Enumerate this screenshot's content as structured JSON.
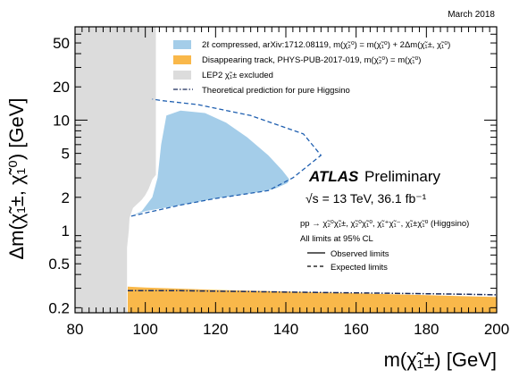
{
  "chart_data": {
    "type": "area",
    "date_label": "March 2018",
    "xlabel": "m(χ̃₁±) [GeV]",
    "ylabel": "Δm(χ̃₁±, χ̃₁⁰) [GeV]",
    "xlim": [
      80,
      200
    ],
    "ylim": [
      0.18,
      70
    ],
    "yscale": "log",
    "x_ticks": [
      "80",
      "100",
      "120",
      "140",
      "160",
      "180",
      "200"
    ],
    "y_ticks": [
      "0.2",
      "0.5",
      "1",
      "2",
      "5",
      "10",
      "20",
      "50"
    ],
    "y_tick_values": [
      0.2,
      0.5,
      1,
      2,
      5,
      10,
      20,
      50
    ],
    "legend": [
      {
        "label": "2ℓ compressed, arXiv:1712.08119, m(χ̃₂⁰) = m(χ̃₁⁰) + 2Δm(χ̃₁±, χ̃₁⁰)",
        "color": "#a4cde9",
        "kind": "fill"
      },
      {
        "label": "Disappearing track, PHYS-PUB-2017-019, m(χ̃₂⁰) = m(χ̃₁⁰)",
        "color": "#f9b84a",
        "kind": "fill"
      },
      {
        "label": "LEP2 χ̃₁± excluded",
        "color": "#dcdcdc",
        "kind": "fill"
      },
      {
        "label": "Theoretical prediction for pure Higgsino",
        "color": "#1a2a5a",
        "kind": "dashdot"
      }
    ],
    "atlas_label": "ATLAS",
    "preliminary_label": "Preliminary",
    "energy_label": "√s = 13 TeV, 36.1 fb⁻¹",
    "process_label": "pp → χ̃₂⁰χ̃₁±, χ̃₂⁰χ̃₁⁰, χ̃₁⁺χ̃₁⁻, χ̃₁±χ̃₁⁰ (Higgsino)",
    "cl_label": "All limits at 95% CL",
    "observed_label": "Observed limits",
    "expected_label": "Expected limits",
    "series": [
      {
        "name": "LEP2 χ̃₁± excluded",
        "kind": "region",
        "color": "#dcdcdc",
        "points": [
          [
            80,
            0.18
          ],
          [
            80,
            70
          ],
          [
            103,
            70
          ],
          [
            103,
            3.2
          ],
          [
            102,
            2.9
          ],
          [
            101,
            2.4
          ],
          [
            100,
            2.1
          ],
          [
            99,
            1.9
          ],
          [
            96.5,
            1.6
          ],
          [
            95.5,
            1.3
          ],
          [
            95.3,
            1.0
          ],
          [
            94.8,
            0.7
          ],
          [
            94.8,
            0.18
          ]
        ]
      },
      {
        "name": "2ℓ compressed observed",
        "kind": "region",
        "color": "#a4cde9",
        "points": [
          [
            96,
            1.35
          ],
          [
            99,
            1.5
          ],
          [
            102,
            2.0
          ],
          [
            103.5,
            3.0
          ],
          [
            104.5,
            6.0
          ],
          [
            106,
            11.0
          ],
          [
            110,
            12.2
          ],
          [
            117,
            11.6
          ],
          [
            123,
            9.5
          ],
          [
            129,
            7.0
          ],
          [
            135,
            4.8
          ],
          [
            139,
            3.5
          ],
          [
            141,
            2.9
          ],
          [
            140.5,
            2.7
          ],
          [
            137,
            2.4
          ],
          [
            133,
            2.25
          ],
          [
            120,
            1.95
          ],
          [
            110,
            1.7
          ],
          [
            100,
            1.5
          ],
          [
            96,
            1.35
          ]
        ]
      },
      {
        "name": "2ℓ compressed expected",
        "kind": "dashed",
        "color": "#1f5fb0",
        "points": [
          [
            96,
            1.35
          ],
          [
            110,
            1.7
          ],
          [
            120,
            1.95
          ],
          [
            135,
            2.3
          ],
          [
            142,
            3.0
          ],
          [
            150,
            4.8
          ],
          [
            145,
            7.5
          ],
          [
            130,
            11.0
          ],
          [
            115,
            13.8
          ],
          [
            105,
            15.0
          ],
          [
            102,
            15.5
          ]
        ]
      },
      {
        "name": "Disappearing track observed",
        "kind": "region",
        "color": "#f9b84a",
        "points": [
          [
            95,
            0.18
          ],
          [
            95,
            0.31
          ],
          [
            100,
            0.305
          ],
          [
            120,
            0.29
          ],
          [
            140,
            0.28
          ],
          [
            160,
            0.27
          ],
          [
            180,
            0.26
          ],
          [
            200,
            0.25
          ],
          [
            200,
            0.18
          ]
        ]
      },
      {
        "name": "Theoretical prediction for pure Higgsino",
        "kind": "dashdot",
        "color": "#1a2a5a",
        "points": [
          [
            95,
            0.285
          ],
          [
            110,
            0.285
          ],
          [
            130,
            0.28
          ],
          [
            150,
            0.275
          ],
          [
            170,
            0.27
          ],
          [
            190,
            0.265
          ],
          [
            200,
            0.262
          ]
        ]
      }
    ]
  }
}
